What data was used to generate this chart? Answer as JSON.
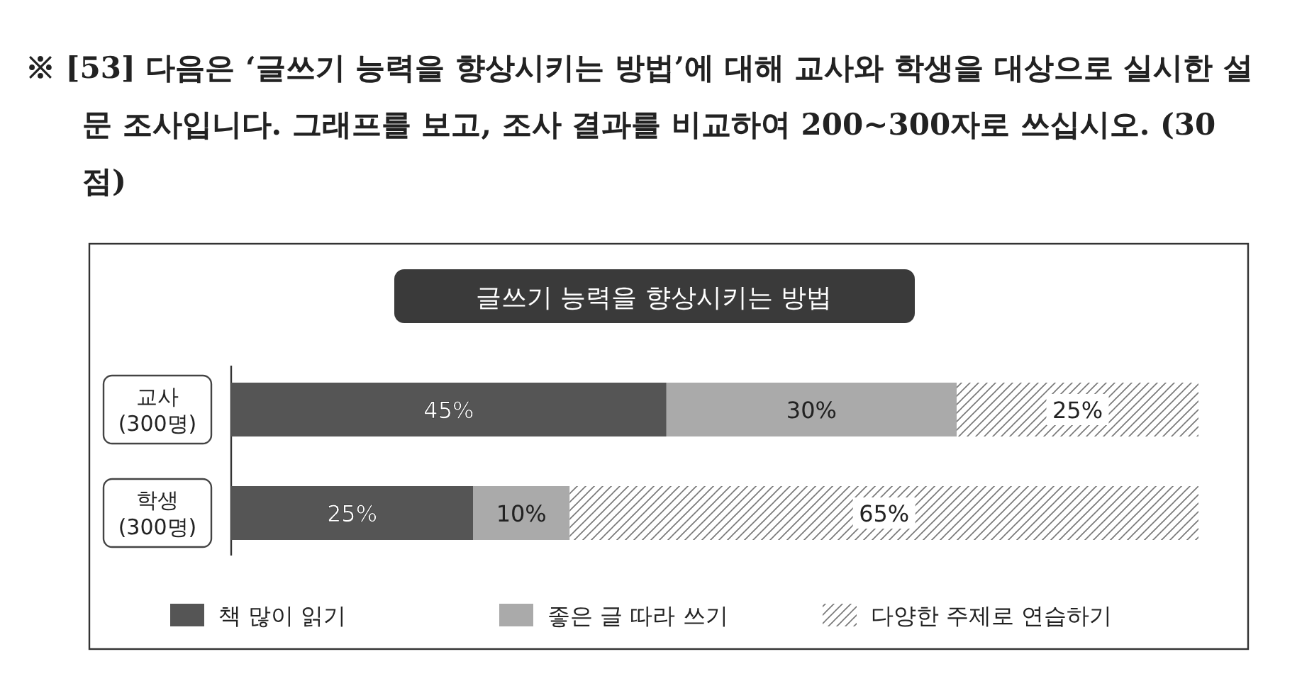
{
  "chart_data": {
    "type": "bar",
    "orientation": "horizontal",
    "stacked": true,
    "title": "글쓰기 능력을 향상시키는 방법",
    "annotations": [
      "※ [53] 다음은 ‘글쓰기 능력을 향상시키는 방법’에 대해 교사와 학생을 대상으로 실시한 설문 조사입니다. 그래프를 보고, 조사 결과를 비교하여 200~300자로 쓰십시오. (30점)"
    ],
    "categories": [
      "교사\n(300명)",
      "학생\n(300명)"
    ],
    "xlim": [
      0,
      100
    ],
    "series": [
      {
        "name": "책 많이 읽기",
        "color": "#555555",
        "values": [
          45,
          25
        ],
        "value_labels": [
          "45%",
          "25%"
        ]
      },
      {
        "name": "좋은 글 따라 쓰기",
        "color": "#aaaaaa",
        "values": [
          30,
          10
        ],
        "value_labels": [
          "30%",
          "10%"
        ]
      },
      {
        "name": "다양한 주제로 연습하기",
        "color": "#ffffff",
        "values": [
          25,
          65
        ],
        "value_labels": [
          "25%",
          "65%"
        ]
      }
    ],
    "legend": "bottom",
    "grid": false
  }
}
